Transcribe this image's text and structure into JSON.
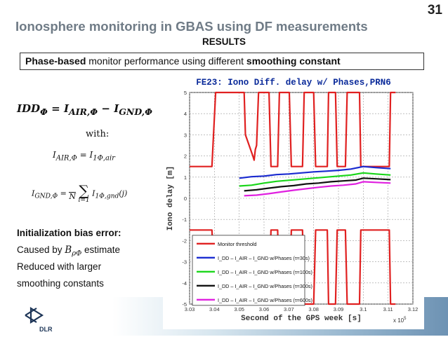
{
  "slide": {
    "number": "31",
    "title": "Ionosphere monitoring in GBAS using DF measurements",
    "section": "RESULTS",
    "subtitle_bold1": "Phase-based",
    "subtitle_mid": " monitor performance using different ",
    "subtitle_bold2": "smoothing constant"
  },
  "equations": {
    "main": {
      "lhs": "IDD",
      "lhs_sub": "Φ",
      "i_air": "I",
      "i_air_sub": "AIR,Φ",
      "i_gnd": "I",
      "i_gnd_sub": "GND,Φ",
      "equals": " = ",
      "minus": " − "
    },
    "with": "with:",
    "air": {
      "lhs": "I",
      "lhs_sub": "AIR,Φ",
      "equals": " = ",
      "rhs": "I",
      "rhs_sub": "1Φ,air"
    },
    "gnd": {
      "lhs": "I",
      "lhs_sub": "GND,Φ",
      "equals": " = ",
      "frac_den": "N",
      "sum": "∑",
      "sum_lower": "i=1",
      "rhs": "I",
      "rhs_sub": "1Φ,gnd",
      "rhs_arg": "(j)"
    }
  },
  "notes": {
    "title": "Initialization bias error:",
    "line1_pre": "Caused by ",
    "line1_sym": "B",
    "line1_sub": "ρΦ",
    "line1_post": " estimate",
    "line2": "Reduced with larger",
    "line3": "smoothing constants"
  },
  "logo": {
    "text": "DLR"
  },
  "colors": {
    "title": "#6f7b86",
    "threshold": "#e02020",
    "tau30": "#1a2bd0",
    "tau100": "#1ad61a",
    "tau300": "#111111",
    "tau600": "#e020e0",
    "plot_title": "#0a2a9a",
    "axis_text": "#333333"
  },
  "chart_data": {
    "type": "line",
    "title": "FE23: Iono Diff. delay w/ Phases,PRN6",
    "xlabel": "Second of the GPS week [s]",
    "ylabel": "Iono delay [m]",
    "x_exponent": "x 10",
    "x_exponent_power": "5",
    "xlim": [
      3.03,
      3.12
    ],
    "ylim": [
      -5,
      5
    ],
    "xticks": [
      "3.03",
      "3.04",
      "3.05",
      "3.06",
      "3.07",
      "3.08",
      "3.09",
      "3.1",
      "3.11",
      "3.12"
    ],
    "yticks": [
      "5",
      "4",
      "3",
      "2",
      "1",
      "0",
      "-1",
      "-2",
      "-3",
      "-4",
      "-5"
    ],
    "grid": true,
    "legend_position": "lower-left",
    "legend": [
      {
        "label": "Monitor threshold",
        "color": "#e02020"
      },
      {
        "label": "I_DD – I_AIR – I_GND w/Phases (τ=30s)",
        "color": "#1a2bd0"
      },
      {
        "label": "I_DD – I_AIR – I_GND w/Phases (τ=100s)",
        "color": "#1ad61a"
      },
      {
        "label": "I_DD – I_AIR – I_GND w/Phases (τ=300s)",
        "color": "#111111"
      },
      {
        "label": "I_DD – I_AIR – I_GND w/Phases (τ=600s)",
        "color": "#e020e0"
      }
    ],
    "threshold_upper": {
      "x": [
        3.03,
        3.039,
        3.0405,
        3.052,
        3.0525,
        3.0555,
        3.056,
        3.0565,
        3.057,
        3.0578,
        3.059,
        3.062,
        3.0628,
        3.0635,
        3.0655,
        3.0662,
        3.0668,
        3.0702,
        3.071,
        3.072,
        3.0755,
        3.0762,
        3.0768,
        3.08,
        3.0808,
        3.0815,
        3.0855,
        3.086,
        3.0867,
        3.0888,
        3.0895,
        3.09,
        3.0928,
        3.0935,
        3.0945,
        3.0985,
        3.099,
        3.1,
        3.1105,
        3.111,
        3.1122,
        3.113
      ],
      "y": [
        1.5,
        1.5,
        5,
        5,
        3,
        2,
        1.8,
        2.3,
        2.5,
        5,
        5,
        5,
        1.5,
        1.5,
        1.5,
        5,
        5,
        5,
        1.5,
        1.5,
        1.5,
        5,
        5,
        5,
        1.5,
        1.5,
        1.5,
        5,
        5,
        5,
        1.5,
        1.5,
        1.5,
        5,
        5,
        5,
        1.5,
        1.5,
        1.5,
        5,
        5,
        5
      ]
    },
    "threshold_lower": {
      "x": [
        3.03,
        3.039,
        3.0405,
        3.052,
        3.0525,
        3.0555,
        3.056,
        3.0565,
        3.057,
        3.0578,
        3.059,
        3.062,
        3.0628,
        3.0635,
        3.0655,
        3.0662,
        3.0668,
        3.0702,
        3.071,
        3.072,
        3.0755,
        3.0762,
        3.0768,
        3.08,
        3.0808,
        3.0815,
        3.0855,
        3.086,
        3.0867,
        3.0888,
        3.0895,
        3.09,
        3.0928,
        3.0935,
        3.0945,
        3.0985,
        3.099,
        3.1,
        3.1105,
        3.111,
        3.1122,
        3.113
      ],
      "y": [
        -1.5,
        -1.5,
        -5,
        -5,
        -3,
        -2,
        -1.8,
        -2.3,
        -2.5,
        -5,
        -5,
        -5,
        -1.5,
        -1.5,
        -1.5,
        -5,
        -5,
        -5,
        -1.5,
        -1.5,
        -1.5,
        -5,
        -5,
        -5,
        -1.5,
        -1.5,
        -1.5,
        -5,
        -5,
        -5,
        -1.5,
        -1.5,
        -1.5,
        -5,
        -5,
        -5,
        -1.5,
        -1.5,
        -1.5,
        -5,
        -5,
        -5
      ]
    },
    "series": [
      {
        "name": "τ=30s",
        "x": [
          3.05,
          3.055,
          3.06,
          3.065,
          3.07,
          3.075,
          3.08,
          3.085,
          3.09,
          3.095,
          3.1,
          3.105,
          3.111
        ],
        "y": [
          0.95,
          1.02,
          1.05,
          1.12,
          1.15,
          1.2,
          1.25,
          1.28,
          1.32,
          1.38,
          1.5,
          1.45,
          1.4
        ]
      },
      {
        "name": "τ=100s",
        "x": [
          3.05,
          3.055,
          3.06,
          3.065,
          3.07,
          3.075,
          3.08,
          3.085,
          3.09,
          3.095,
          3.1,
          3.105,
          3.111
        ],
        "y": [
          0.58,
          0.62,
          0.72,
          0.8,
          0.85,
          0.9,
          0.95,
          1.0,
          1.05,
          1.1,
          1.2,
          1.15,
          1.1
        ]
      },
      {
        "name": "τ=300s",
        "x": [
          3.052,
          3.057,
          3.062,
          3.067,
          3.072,
          3.077,
          3.082,
          3.087,
          3.092,
          3.097,
          3.1,
          3.105,
          3.111
        ],
        "y": [
          0.35,
          0.4,
          0.48,
          0.55,
          0.6,
          0.68,
          0.72,
          0.78,
          0.82,
          0.86,
          0.95,
          0.92,
          0.88
        ]
      },
      {
        "name": "τ=600s",
        "x": [
          3.052,
          3.057,
          3.062,
          3.067,
          3.072,
          3.077,
          3.082,
          3.087,
          3.092,
          3.097,
          3.1,
          3.105,
          3.111
        ],
        "y": [
          0.12,
          0.15,
          0.22,
          0.3,
          0.38,
          0.45,
          0.52,
          0.58,
          0.62,
          0.68,
          0.78,
          0.75,
          0.72
        ]
      }
    ]
  }
}
